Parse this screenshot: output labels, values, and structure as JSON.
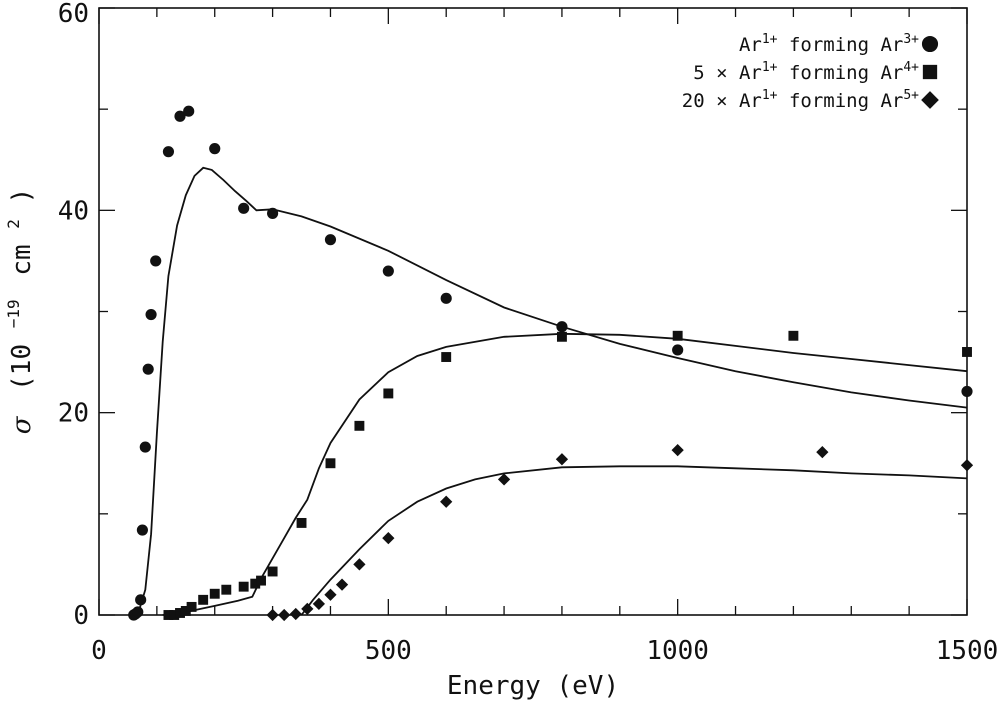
{
  "chart_data": {
    "type": "scatter",
    "title": "",
    "xlabel": "Energy (eV)",
    "ylabel_parts": {
      "sigma": "σ",
      "open": "(10",
      "exp": "−19",
      "mid": "cm",
      "pow": "2",
      "close": ")"
    },
    "xlim": [
      0,
      1500
    ],
    "ylim": [
      0,
      60
    ],
    "x_ticks": [
      0,
      500,
      1000,
      1500
    ],
    "x_tick_labels": [
      "0",
      "500",
      "1000",
      "1500"
    ],
    "y_ticks": [
      0,
      20,
      40,
      60
    ],
    "y_tick_labels": [
      "0",
      "20",
      "40",
      "60"
    ],
    "x_minor_step": 100,
    "y_minor_step": 10,
    "legend_position": "top-right",
    "series": [
      {
        "name": "Ar1+ forming Ar3+",
        "label_prefix": "",
        "label_ion": "Ar",
        "label_ion_charge": "1+",
        "label_mid": " forming ",
        "label_product": "Ar",
        "label_product_charge": "3+",
        "marker": "circle",
        "points": [
          [
            60,
            0.0
          ],
          [
            63,
            0.1
          ],
          [
            67,
            0.3
          ],
          [
            72,
            1.5
          ],
          [
            75,
            8.4
          ],
          [
            80,
            16.6
          ],
          [
            85,
            24.3
          ],
          [
            90,
            29.7
          ],
          [
            98,
            35.0
          ],
          [
            120,
            45.8
          ],
          [
            140,
            49.3
          ],
          [
            155,
            49.8
          ],
          [
            200,
            46.1
          ],
          [
            250,
            40.2
          ],
          [
            300,
            39.7
          ],
          [
            400,
            37.1
          ],
          [
            500,
            34.0
          ],
          [
            600,
            31.3
          ],
          [
            800,
            28.5
          ],
          [
            1000,
            26.2
          ],
          [
            1500,
            22.1
          ]
        ],
        "fit": [
          [
            62,
            0
          ],
          [
            70,
            0.6
          ],
          [
            80,
            2.5
          ],
          [
            90,
            8
          ],
          [
            100,
            18
          ],
          [
            110,
            27
          ],
          [
            120,
            33.5
          ],
          [
            135,
            38.5
          ],
          [
            150,
            41.5
          ],
          [
            165,
            43.4
          ],
          [
            180,
            44.2
          ],
          [
            195,
            44.0
          ],
          [
            215,
            43.0
          ],
          [
            235,
            41.9
          ],
          [
            255,
            40.9
          ],
          [
            272,
            40.0
          ],
          [
            300,
            40.1
          ],
          [
            350,
            39.4
          ],
          [
            400,
            38.4
          ],
          [
            500,
            36.0
          ],
          [
            600,
            33.1
          ],
          [
            700,
            30.4
          ],
          [
            800,
            28.5
          ],
          [
            900,
            26.8
          ],
          [
            1000,
            25.4
          ],
          [
            1100,
            24.1
          ],
          [
            1200,
            23.0
          ],
          [
            1300,
            22.0
          ],
          [
            1400,
            21.2
          ],
          [
            1500,
            20.5
          ]
        ]
      },
      {
        "name": "5 × Ar1+ forming Ar4+",
        "label_prefix": "5 × ",
        "label_ion": "Ar",
        "label_ion_charge": "1+",
        "label_mid": " forming ",
        "label_product": "Ar",
        "label_product_charge": "4+",
        "marker": "square",
        "points": [
          [
            120,
            0.0
          ],
          [
            130,
            0.0
          ],
          [
            140,
            0.2
          ],
          [
            150,
            0.4
          ],
          [
            160,
            0.8
          ],
          [
            180,
            1.5
          ],
          [
            200,
            2.1
          ],
          [
            220,
            2.5
          ],
          [
            250,
            2.8
          ],
          [
            270,
            3.1
          ],
          [
            280,
            3.4
          ],
          [
            300,
            4.3
          ],
          [
            350,
            9.1
          ],
          [
            400,
            15.0
          ],
          [
            450,
            18.7
          ],
          [
            500,
            21.9
          ],
          [
            600,
            25.5
          ],
          [
            800,
            27.5
          ],
          [
            1000,
            27.6
          ],
          [
            1200,
            27.6
          ],
          [
            1500,
            26.0
          ]
        ],
        "fit": [
          [
            110,
            0
          ],
          [
            150,
            0.3
          ],
          [
            200,
            0.9
          ],
          [
            240,
            1.4
          ],
          [
            265,
            1.8
          ],
          [
            280,
            3.6
          ],
          [
            300,
            5.6
          ],
          [
            320,
            7.6
          ],
          [
            340,
            9.6
          ],
          [
            360,
            11.4
          ],
          [
            380,
            14.5
          ],
          [
            400,
            17.0
          ],
          [
            450,
            21.3
          ],
          [
            500,
            24.0
          ],
          [
            550,
            25.6
          ],
          [
            600,
            26.5
          ],
          [
            700,
            27.5
          ],
          [
            800,
            27.8
          ],
          [
            900,
            27.7
          ],
          [
            1000,
            27.3
          ],
          [
            1100,
            26.6
          ],
          [
            1200,
            25.9
          ],
          [
            1300,
            25.3
          ],
          [
            1400,
            24.7
          ],
          [
            1500,
            24.1
          ]
        ]
      },
      {
        "name": "20 × Ar1+ forming Ar5+",
        "label_prefix": "20 × ",
        "label_ion": "Ar",
        "label_ion_charge": "1+",
        "label_mid": " forming ",
        "label_product": "Ar",
        "label_product_charge": "5+",
        "marker": "diamond",
        "points": [
          [
            300,
            0.0
          ],
          [
            320,
            0.0
          ],
          [
            340,
            0.1
          ],
          [
            360,
            0.6
          ],
          [
            380,
            1.1
          ],
          [
            400,
            2.0
          ],
          [
            420,
            3.0
          ],
          [
            450,
            5.0
          ],
          [
            500,
            7.6
          ],
          [
            600,
            11.2
          ],
          [
            700,
            13.4
          ],
          [
            800,
            15.4
          ],
          [
            1000,
            16.3
          ],
          [
            1250,
            16.1
          ],
          [
            1500,
            14.8
          ]
        ],
        "fit": [
          [
            350,
            0
          ],
          [
            370,
            1.5
          ],
          [
            400,
            3.5
          ],
          [
            450,
            6.5
          ],
          [
            500,
            9.3
          ],
          [
            550,
            11.2
          ],
          [
            600,
            12.5
          ],
          [
            650,
            13.4
          ],
          [
            700,
            14.0
          ],
          [
            800,
            14.6
          ],
          [
            900,
            14.7
          ],
          [
            1000,
            14.7
          ],
          [
            1100,
            14.5
          ],
          [
            1200,
            14.3
          ],
          [
            1300,
            14.0
          ],
          [
            1400,
            13.8
          ],
          [
            1500,
            13.5
          ]
        ]
      }
    ]
  }
}
